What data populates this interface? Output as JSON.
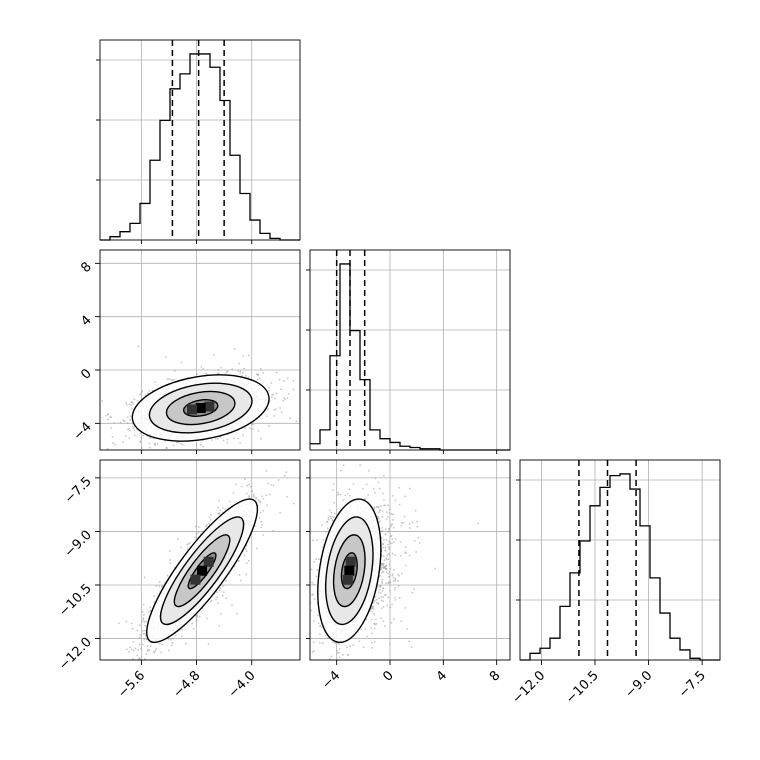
{
  "chart_data": {
    "type": "corner",
    "grid": true,
    "params": [
      {
        "id": "p1",
        "range": [
          -6.2,
          -3.3
        ],
        "ticks": [
          -5.6,
          -4.8,
          -4.0
        ],
        "tick_labels": [
          "−5.6",
          "−4.8",
          "−4.0"
        ],
        "quantiles": [
          -5.15,
          -4.77,
          -4.4
        ]
      },
      {
        "id": "p2",
        "range": [
          -6.0,
          9.0
        ],
        "ticks": [
          -4,
          0,
          4,
          8
        ],
        "tick_labels": [
          "−4",
          "0",
          "4",
          "8"
        ],
        "quantiles": [
          -4.0,
          -3.0,
          -1.9
        ]
      },
      {
        "id": "p3",
        "range": [
          -12.6,
          -7.0
        ],
        "ticks": [
          -12.0,
          -10.5,
          -9.0,
          -7.5
        ],
        "tick_labels": [
          "−12.0",
          "−10.5",
          "−9.0",
          "−7.5"
        ],
        "quantiles": [
          -10.95,
          -10.15,
          -9.35
        ]
      }
    ],
    "histograms": [
      {
        "param": "p1",
        "bins": [
          -6.2,
          -6.055,
          -5.91,
          -5.765,
          -5.62,
          -5.475,
          -5.33,
          -5.185,
          -5.04,
          -4.895,
          -4.75,
          -4.605,
          -4.46,
          -4.315,
          -4.17,
          -4.025,
          -3.88,
          -3.735,
          -3.59,
          -3.445,
          -3.3
        ],
        "counts": [
          0,
          2,
          5,
          10,
          22,
          48,
          72,
          91,
          100,
          112,
          112,
          104,
          84,
          51,
          28,
          12,
          4,
          1,
          0,
          0
        ]
      },
      {
        "param": "p2",
        "bins": [
          -6.0,
          -5.25,
          -4.5,
          -3.75,
          -3.0,
          -2.25,
          -1.5,
          -0.75,
          0.0,
          0.75,
          1.5,
          2.25,
          3.0,
          3.75,
          4.5,
          5.25,
          6.0,
          6.75,
          7.5,
          8.25,
          9.0
        ],
        "counts": [
          5,
          16,
          75,
          148,
          95,
          56,
          16,
          9,
          6,
          3,
          2,
          1,
          1,
          0,
          0,
          0,
          0,
          0,
          0,
          0
        ]
      },
      {
        "param": "p3",
        "bins": [
          -12.6,
          -12.32,
          -12.04,
          -11.76,
          -11.48,
          -11.2,
          -10.92,
          -10.64,
          -10.36,
          -10.08,
          -9.8,
          -9.52,
          -9.24,
          -8.96,
          -8.68,
          -8.4,
          -8.12,
          -7.84,
          -7.56,
          -7.28,
          -7.0
        ],
        "counts": [
          0,
          4,
          7,
          13,
          32,
          52,
          71,
          92,
          103,
          110,
          111,
          102,
          80,
          49,
          28,
          13,
          6,
          1,
          0,
          0
        ]
      }
    ],
    "pairs": [
      {
        "x": "p1",
        "y": "p2",
        "center": [
          -4.74,
          -2.85
        ],
        "sd": [
          0.42,
          1.05
        ],
        "rho": 0.28
      },
      {
        "x": "p1",
        "y": "p3",
        "center": [
          -4.72,
          -10.1
        ],
        "sd": [
          0.34,
          0.85
        ],
        "rho": 0.86
      },
      {
        "x": "p2",
        "y": "p3",
        "center": [
          -3.05,
          -10.1
        ],
        "sd": [
          1.0,
          0.85
        ],
        "rho": 0.3
      }
    ],
    "contour_levels_sigma": [
      0.5,
      1.0,
      1.5,
      2.0
    ]
  }
}
